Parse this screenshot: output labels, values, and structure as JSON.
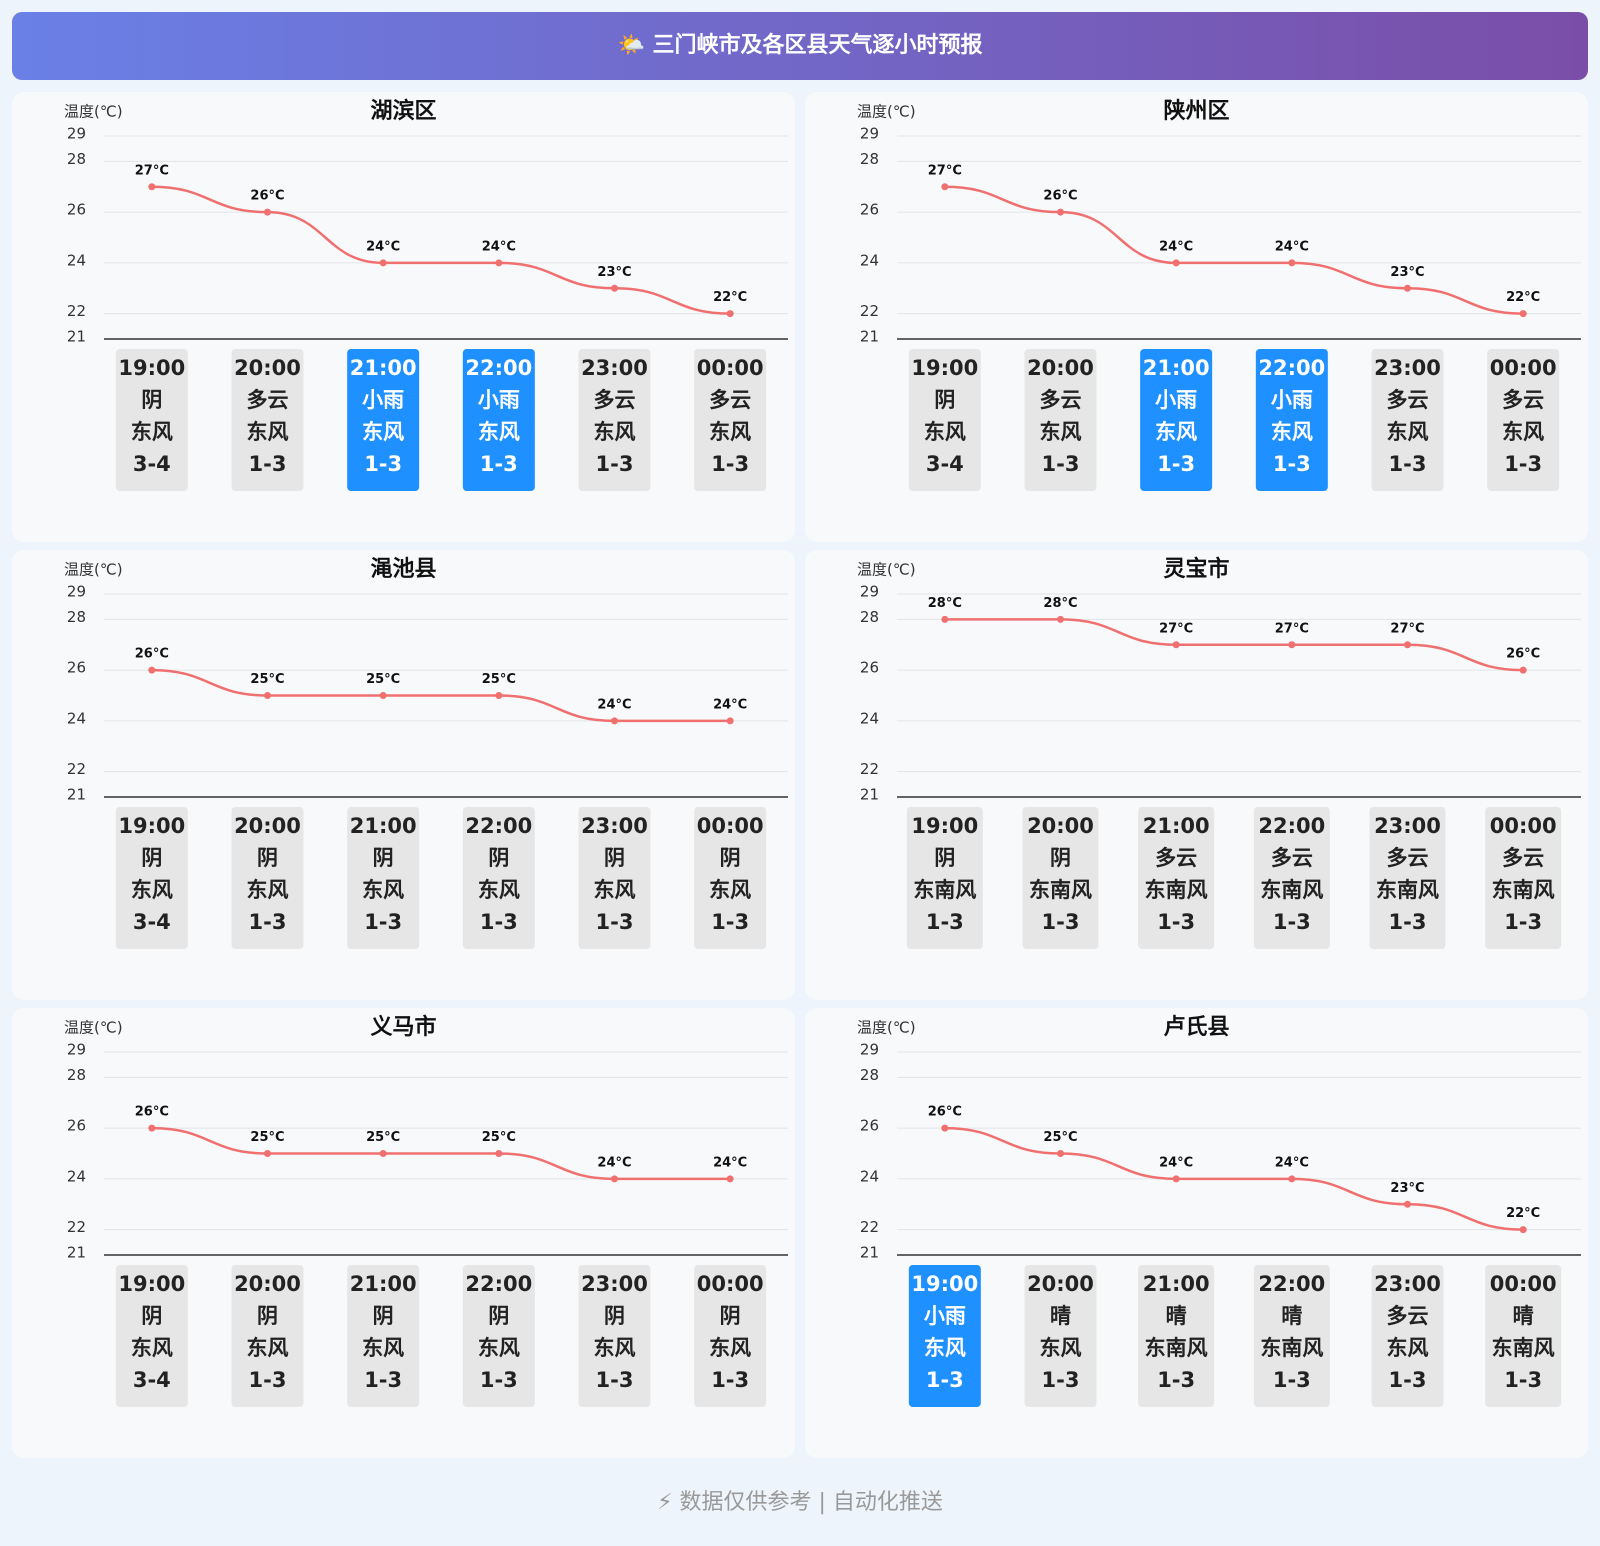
{
  "header": {
    "title": "🌤️ 三门峡市及各区县天气逐小时预报"
  },
  "chart_data": [
    {
      "type": "line",
      "title": "湖滨区",
      "y_label": "温度(℃)",
      "categories": [
        "19:00",
        "20:00",
        "21:00",
        "22:00",
        "23:00",
        "00:00"
      ],
      "values": [
        27,
        26,
        24,
        24,
        23,
        22
      ],
      "value_labels": [
        "27°C",
        "26°C",
        "24°C",
        "24°C",
        "23°C",
        "22°C"
      ],
      "color": "#f07070",
      "weather": [
        "阴",
        "多云",
        "小雨",
        "小雨",
        "多云",
        "多云"
      ],
      "wind": [
        "东风",
        "东风",
        "东风",
        "东风",
        "东风",
        "东风"
      ],
      "wind_level": [
        "3-4",
        "1-3",
        "1-3",
        "1-3",
        "1-3",
        "1-3"
      ],
      "box_colors": [
        "#e6e6e6",
        "#e6e6e6",
        "#1e90ff",
        "#1e90ff",
        "#e6e6e6",
        "#e6e6e6"
      ],
      "ylim": [
        21,
        29
      ],
      "yticks": [
        21,
        22,
        24,
        26,
        28,
        29
      ],
      "grid": true
    },
    {
      "type": "line",
      "title": "陕州区",
      "y_label": "温度(℃)",
      "categories": [
        "19:00",
        "20:00",
        "21:00",
        "22:00",
        "23:00",
        "00:00"
      ],
      "values": [
        27,
        26,
        24,
        24,
        23,
        22
      ],
      "value_labels": [
        "27°C",
        "26°C",
        "24°C",
        "24°C",
        "23°C",
        "22°C"
      ],
      "color": "#f07070",
      "weather": [
        "阴",
        "多云",
        "小雨",
        "小雨",
        "多云",
        "多云"
      ],
      "wind": [
        "东风",
        "东风",
        "东风",
        "东风",
        "东风",
        "东风"
      ],
      "wind_level": [
        "3-4",
        "1-3",
        "1-3",
        "1-3",
        "1-3",
        "1-3"
      ],
      "box_colors": [
        "#e6e6e6",
        "#e6e6e6",
        "#1e90ff",
        "#1e90ff",
        "#e6e6e6",
        "#e6e6e6"
      ],
      "ylim": [
        21,
        29
      ],
      "yticks": [
        21,
        22,
        24,
        26,
        28,
        29
      ],
      "grid": true
    },
    {
      "type": "line",
      "title": "渑池县",
      "y_label": "温度(℃)",
      "categories": [
        "19:00",
        "20:00",
        "21:00",
        "22:00",
        "23:00",
        "00:00"
      ],
      "values": [
        26,
        25,
        25,
        25,
        24,
        24
      ],
      "value_labels": [
        "26°C",
        "25°C",
        "25°C",
        "25°C",
        "24°C",
        "24°C"
      ],
      "color": "#f07070",
      "weather": [
        "阴",
        "阴",
        "阴",
        "阴",
        "阴",
        "阴"
      ],
      "wind": [
        "东风",
        "东风",
        "东风",
        "东风",
        "东风",
        "东风"
      ],
      "wind_level": [
        "3-4",
        "1-3",
        "1-3",
        "1-3",
        "1-3",
        "1-3"
      ],
      "box_colors": [
        "#e6e6e6",
        "#e6e6e6",
        "#e6e6e6",
        "#e6e6e6",
        "#e6e6e6",
        "#e6e6e6"
      ],
      "ylim": [
        21,
        29
      ],
      "yticks": [
        21,
        22,
        24,
        26,
        28,
        29
      ],
      "grid": true
    },
    {
      "type": "line",
      "title": "灵宝市",
      "y_label": "温度(℃)",
      "categories": [
        "19:00",
        "20:00",
        "21:00",
        "22:00",
        "23:00",
        "00:00"
      ],
      "values": [
        28,
        28,
        27,
        27,
        27,
        26
      ],
      "value_labels": [
        "28°C",
        "28°C",
        "27°C",
        "27°C",
        "27°C",
        "26°C"
      ],
      "color": "#f07070",
      "weather": [
        "阴",
        "阴",
        "多云",
        "多云",
        "多云",
        "多云"
      ],
      "wind": [
        "东南风",
        "东南风",
        "东南风",
        "东南风",
        "东南风",
        "东南风"
      ],
      "wind_level": [
        "1-3",
        "1-3",
        "1-3",
        "1-3",
        "1-3",
        "1-3"
      ],
      "box_colors": [
        "#e6e6e6",
        "#e6e6e6",
        "#e6e6e6",
        "#e6e6e6",
        "#e6e6e6",
        "#e6e6e6"
      ],
      "ylim": [
        21,
        29
      ],
      "yticks": [
        21,
        22,
        24,
        26,
        28,
        29
      ],
      "grid": true
    },
    {
      "type": "line",
      "title": "义马市",
      "y_label": "温度(℃)",
      "categories": [
        "19:00",
        "20:00",
        "21:00",
        "22:00",
        "23:00",
        "00:00"
      ],
      "values": [
        26,
        25,
        25,
        25,
        24,
        24
      ],
      "value_labels": [
        "26°C",
        "25°C",
        "25°C",
        "25°C",
        "24°C",
        "24°C"
      ],
      "color": "#f07070",
      "weather": [
        "阴",
        "阴",
        "阴",
        "阴",
        "阴",
        "阴"
      ],
      "wind": [
        "东风",
        "东风",
        "东风",
        "东风",
        "东风",
        "东风"
      ],
      "wind_level": [
        "3-4",
        "1-3",
        "1-3",
        "1-3",
        "1-3",
        "1-3"
      ],
      "box_colors": [
        "#e6e6e6",
        "#e6e6e6",
        "#e6e6e6",
        "#e6e6e6",
        "#e6e6e6",
        "#e6e6e6"
      ],
      "ylim": [
        21,
        29
      ],
      "yticks": [
        21,
        22,
        24,
        26,
        28,
        29
      ],
      "grid": true
    },
    {
      "type": "line",
      "title": "卢氏县",
      "y_label": "温度(℃)",
      "categories": [
        "19:00",
        "20:00",
        "21:00",
        "22:00",
        "23:00",
        "00:00"
      ],
      "values": [
        26,
        25,
        24,
        24,
        23,
        22
      ],
      "value_labels": [
        "26°C",
        "25°C",
        "24°C",
        "24°C",
        "23°C",
        "22°C"
      ],
      "color": "#f07070",
      "weather": [
        "小雨",
        "晴",
        "晴",
        "晴",
        "多云",
        "晴"
      ],
      "wind": [
        "东风",
        "东风",
        "东南风",
        "东南风",
        "东风",
        "东南风"
      ],
      "wind_level": [
        "1-3",
        "1-3",
        "1-3",
        "1-3",
        "1-3",
        "1-3"
      ],
      "box_colors": [
        "#1e90ff",
        "#e6e6e6",
        "#e6e6e6",
        "#e6e6e6",
        "#e6e6e6",
        "#e6e6e6"
      ],
      "ylim": [
        21,
        29
      ],
      "yticks": [
        21,
        22,
        24,
        26,
        28,
        29
      ],
      "grid": true
    }
  ],
  "footer": {
    "text": "⚡ 数据仅供参考 | 自动化推送"
  }
}
